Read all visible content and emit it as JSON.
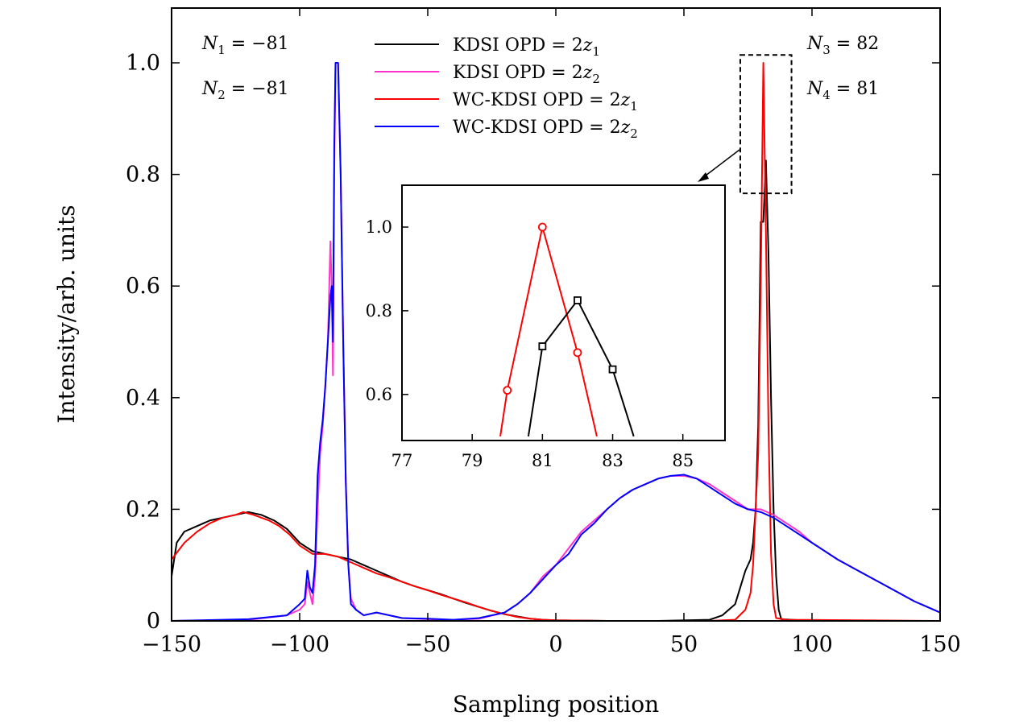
{
  "chart_data": {
    "type": "line",
    "xlabel": "Sampling position",
    "ylabel": "Intensity/arb. units",
    "xlim": [
      -150,
      150
    ],
    "ylim": [
      0,
      1.1
    ],
    "xticks": [
      -150,
      -100,
      -50,
      0,
      50,
      100,
      150
    ],
    "xtick_labels": [
      "−150",
      "−100",
      "−50",
      "0",
      "50",
      "100",
      "150"
    ],
    "yticks": [
      0,
      0.2,
      0.4,
      0.6,
      0.8,
      1.0
    ],
    "ytick_labels": [
      "0",
      "0.2",
      "0.4",
      "0.6",
      "0.8",
      "1.0"
    ],
    "series": [
      {
        "name": "KDSI OPD = 2z1",
        "label": "KDSI OPD = 2",
        "var": "z",
        "sub": "1",
        "color": "#000000",
        "x": [
          -150,
          -148,
          -145,
          -140,
          -135,
          -130,
          -125,
          -120,
          -115,
          -110,
          -105,
          -100,
          -95,
          -90,
          -85,
          -80,
          -75,
          -70,
          -65,
          -60,
          -55,
          -50,
          -45,
          -40,
          -35,
          -30,
          -25,
          -20,
          -15,
          -10,
          -5,
          0,
          20,
          40,
          60,
          65,
          70,
          72,
          74,
          76,
          77,
          78,
          79,
          80,
          81,
          82,
          83,
          84,
          85,
          86,
          87,
          88,
          100,
          150
        ],
        "y": [
          0.08,
          0.14,
          0.16,
          0.17,
          0.18,
          0.185,
          0.19,
          0.195,
          0.19,
          0.18,
          0.165,
          0.14,
          0.125,
          0.12,
          0.115,
          0.11,
          0.1,
          0.09,
          0.08,
          0.07,
          0.062,
          0.055,
          0.048,
          0.04,
          0.032,
          0.025,
          0.018,
          0.012,
          0.008,
          0.004,
          0.002,
          0.001,
          0,
          0,
          0.002,
          0.01,
          0.03,
          0.06,
          0.09,
          0.11,
          0.14,
          0.2,
          0.35,
          0.715,
          0.715,
          0.825,
          0.66,
          0.4,
          0.2,
          0.08,
          0.02,
          0.003,
          0,
          0
        ]
      },
      {
        "name": "KDSI OPD = 2z2",
        "label": "KDSI OPD = 2",
        "var": "z",
        "sub": "2",
        "color": "#ff33cc",
        "x": [
          -150,
          -120,
          -105,
          -100,
          -98,
          -97,
          -96,
          -95,
          -94,
          -93,
          -92,
          -91,
          -90,
          -89,
          -88,
          -87.5,
          -87,
          -86.5,
          -86,
          -85,
          -84,
          -83,
          -82,
          -81,
          -80,
          -78,
          -75,
          -70,
          -60,
          -50,
          -40,
          -30,
          -20,
          -15,
          -10,
          -5,
          0,
          5,
          10,
          15,
          20,
          25,
          30,
          35,
          40,
          45,
          50,
          55,
          60,
          65,
          70,
          75,
          80,
          85,
          90,
          95,
          100,
          110,
          120,
          130,
          140,
          150
        ],
        "y": [
          0,
          0.002,
          0.01,
          0.02,
          0.03,
          0.07,
          0.05,
          0.03,
          0.08,
          0.2,
          0.3,
          0.35,
          0.42,
          0.5,
          0.68,
          0.6,
          0.44,
          0.8,
          1.0,
          1.0,
          0.8,
          0.5,
          0.25,
          0.1,
          0.04,
          0.02,
          0.01,
          0.015,
          0.005,
          0.003,
          0.002,
          0.004,
          0.015,
          0.03,
          0.05,
          0.08,
          0.1,
          0.13,
          0.16,
          0.18,
          0.2,
          0.22,
          0.235,
          0.245,
          0.255,
          0.26,
          0.26,
          0.255,
          0.245,
          0.23,
          0.215,
          0.2,
          0.2,
          0.19,
          0.175,
          0.16,
          0.14,
          0.11,
          0.085,
          0.06,
          0.035,
          0.015
        ]
      },
      {
        "name": "WC-KDSI OPD = 2z1",
        "label": "WC-KDSI OPD = 2",
        "var": "z",
        "sub": "1",
        "color": "#ff0000",
        "x": [
          -150,
          -145,
          -140,
          -135,
          -130,
          -125,
          -122,
          -118,
          -112,
          -108,
          -104,
          -100,
          -95,
          -90,
          -85,
          -80,
          -75,
          -70,
          -65,
          -60,
          -55,
          -50,
          -45,
          -40,
          -35,
          -30,
          -25,
          -20,
          -15,
          -10,
          -5,
          0,
          20,
          40,
          60,
          70,
          74,
          76,
          77,
          78,
          79,
          80,
          81,
          82,
          83,
          84,
          85,
          86,
          90,
          150
        ],
        "y": [
          0.11,
          0.14,
          0.16,
          0.175,
          0.185,
          0.19,
          0.195,
          0.19,
          0.18,
          0.17,
          0.155,
          0.135,
          0.12,
          0.12,
          0.115,
          0.105,
          0.095,
          0.085,
          0.078,
          0.07,
          0.062,
          0.055,
          0.047,
          0.04,
          0.033,
          0.025,
          0.018,
          0.012,
          0.007,
          0.004,
          0.002,
          0.001,
          0,
          0,
          0,
          0.002,
          0.02,
          0.05,
          0.1,
          0.2,
          0.3,
          0.61,
          1.0,
          0.7,
          0.35,
          0.12,
          0.03,
          0.005,
          0.002,
          0
        ]
      },
      {
        "name": "WC-KDSI OPD = 2z2",
        "label": "WC-KDSI OPD = 2",
        "var": "z",
        "sub": "2",
        "color": "#0000ff",
        "x": [
          -150,
          -120,
          -105,
          -100,
          -98,
          -97,
          -96,
          -95,
          -94,
          -93,
          -92,
          -91,
          -90,
          -89,
          -88,
          -87.5,
          -87,
          -86.5,
          -86,
          -85,
          -84,
          -83,
          -82,
          -81,
          -80,
          -78,
          -75,
          -70,
          -60,
          -50,
          -40,
          -30,
          -20,
          -15,
          -10,
          -5,
          0,
          5,
          10,
          15,
          20,
          25,
          30,
          35,
          40,
          45,
          50,
          55,
          60,
          65,
          70,
          75,
          80,
          85,
          90,
          95,
          100,
          110,
          120,
          130,
          140,
          150
        ],
        "y": [
          0,
          0.003,
          0.01,
          0.03,
          0.04,
          0.09,
          0.06,
          0.05,
          0.1,
          0.26,
          0.32,
          0.36,
          0.42,
          0.5,
          0.58,
          0.6,
          0.5,
          0.85,
          1.0,
          1.0,
          0.8,
          0.5,
          0.25,
          0.1,
          0.03,
          0.02,
          0.01,
          0.015,
          0.005,
          0.004,
          0.002,
          0.005,
          0.015,
          0.03,
          0.05,
          0.075,
          0.1,
          0.12,
          0.155,
          0.175,
          0.2,
          0.22,
          0.235,
          0.245,
          0.255,
          0.26,
          0.262,
          0.255,
          0.24,
          0.225,
          0.21,
          0.2,
          0.195,
          0.185,
          0.17,
          0.155,
          0.14,
          0.11,
          0.085,
          0.06,
          0.035,
          0.015
        ]
      }
    ],
    "annotations": {
      "n1": {
        "sym": "N",
        "sub": "1",
        "val": " = −81"
      },
      "n2": {
        "sym": "N",
        "sub": "2",
        "val": " = −81"
      },
      "n3": {
        "sym": "N",
        "sub": "3",
        "val": " =  82"
      },
      "n4": {
        "sym": "N",
        "sub": "4",
        "val": " =  81"
      }
    },
    "zoom_box": {
      "xlim": [
        72,
        92
      ],
      "ylim": [
        0.766,
        1.014
      ]
    },
    "inset": {
      "xlim": [
        77,
        86.2
      ],
      "ylim": [
        0.49,
        1.1
      ],
      "xticks": [
        77,
        79,
        81,
        83,
        85
      ],
      "xtick_labels": [
        "77",
        "79",
        "81",
        "83",
        "85"
      ],
      "yticks": [
        0.6,
        0.8,
        1.0
      ],
      "ytick_labels": [
        "0.6",
        "0.8",
        "1.0"
      ],
      "series": [
        {
          "name": "WC-KDSI OPD = 2z1",
          "color": "#ff0000",
          "marker": "circle",
          "x": [
            80,
            81,
            82
          ],
          "y": [
            0.61,
            1.0,
            0.7
          ],
          "line_x": [
            79.8,
            80,
            81,
            82,
            82.55
          ],
          "line_y": [
            0.5,
            0.61,
            1.0,
            0.7,
            0.5
          ]
        },
        {
          "name": "KDSI OPD = 2z1",
          "color": "#000000",
          "marker": "square",
          "x": [
            81,
            82,
            83
          ],
          "y": [
            0.715,
            0.825,
            0.66
          ],
          "line_x": [
            80.6,
            81,
            82,
            83,
            83.6
          ],
          "line_y": [
            0.5,
            0.715,
            0.825,
            0.66,
            0.5
          ]
        }
      ]
    }
  }
}
